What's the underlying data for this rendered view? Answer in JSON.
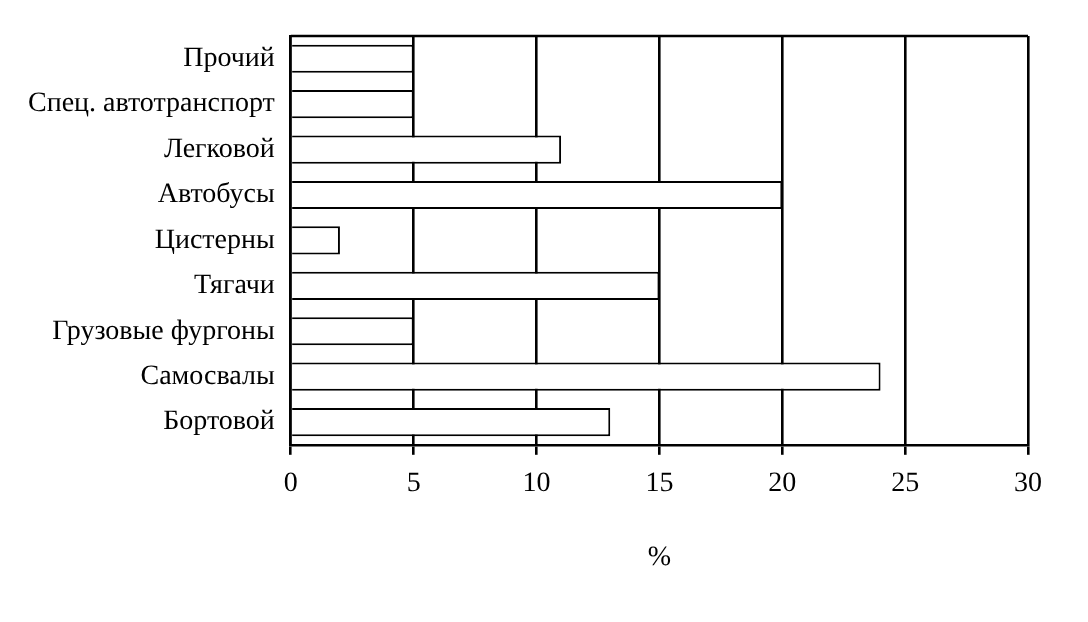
{
  "chart_data": {
    "type": "bar",
    "orientation": "horizontal",
    "xlabel": "%",
    "categories": [
      "Прочий",
      "Спец. автотранспорт",
      "Легковой",
      "Автобусы",
      "Цистерны",
      "Тягачи",
      "Грузовые фургоны",
      "Самосвалы",
      "Бортовой"
    ],
    "values": [
      5,
      5,
      11,
      20,
      2,
      15,
      5,
      24,
      13
    ],
    "color": "#ffffff",
    "xlim": [
      0,
      30
    ],
    "xticks": [
      0,
      5,
      10,
      15,
      20,
      25,
      30
    ],
    "grid": "x",
    "legend": false
  }
}
